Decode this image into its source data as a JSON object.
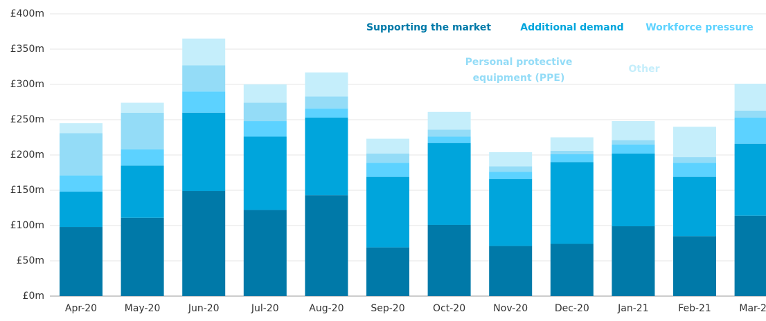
{
  "chart_data": {
    "type": "stacked_bar",
    "categories": [
      "Apr-20",
      "May-20",
      "Jun-20",
      "Jul-20",
      "Aug-20",
      "Sep-20",
      "Oct-20",
      "Nov-20",
      "Dec-20",
      "Jan-21",
      "Feb-21",
      "Mar-21"
    ],
    "series": [
      {
        "name": "Supporting the market",
        "color": "#0079a8",
        "values": [
          98,
          111,
          149,
          122,
          143,
          69,
          101,
          71,
          74,
          99,
          85,
          114
        ]
      },
      {
        "name": "Additional demand",
        "color": "#00a5dc",
        "values": [
          50,
          74,
          111,
          104,
          110,
          100,
          116,
          95,
          116,
          103,
          84,
          102
        ]
      },
      {
        "name": "Workforce pressure",
        "color": "#5cd2ff",
        "values": [
          23,
          23,
          30,
          22,
          13,
          20,
          9,
          10,
          11,
          13,
          20,
          37
        ]
      },
      {
        "name": "Personal protective equipment (PPE)",
        "color": "#94dcf7",
        "values": [
          60,
          52,
          37,
          26,
          17,
          13,
          10,
          8,
          5,
          6,
          8,
          10
        ]
      },
      {
        "name": "Other",
        "color": "#c5eefb",
        "values": [
          14,
          14,
          38,
          26,
          34,
          21,
          25,
          20,
          19,
          27,
          43,
          38
        ]
      }
    ],
    "ylim": [
      0,
      400
    ],
    "yticks": [
      {
        "value": 0,
        "label": "£0m"
      },
      {
        "value": 50,
        "label": "£50m"
      },
      {
        "value": 100,
        "label": "£100m"
      },
      {
        "value": 150,
        "label": "£150m"
      },
      {
        "value": 200,
        "label": "£200m"
      },
      {
        "value": 250,
        "label": "£250m"
      },
      {
        "value": 300,
        "label": "£300m"
      },
      {
        "value": 350,
        "label": "£350m"
      },
      {
        "value": 400,
        "label": "£400m"
      }
    ],
    "grid": true
  }
}
